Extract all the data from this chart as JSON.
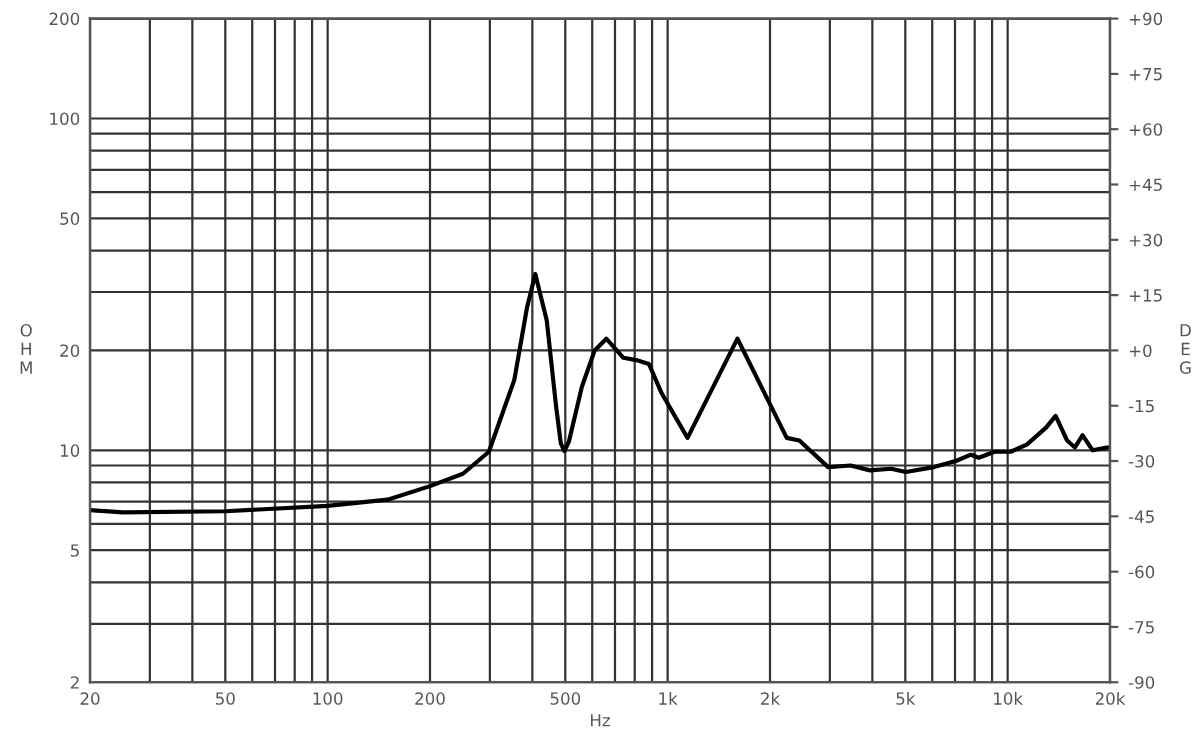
{
  "chart_data": {
    "type": "line",
    "xlabel": "Hz",
    "ylabel": "OHM",
    "y2label": "DEG",
    "log": "xy",
    "grid": true,
    "marker": "none",
    "line_style": "solid",
    "xlim": [
      20,
      20000
    ],
    "ylim": [
      2,
      200
    ],
    "y2lim": [
      -90,
      90
    ],
    "xticks": [
      20,
      {
        "value": 30,
        "label": null
      },
      {
        "value": 40,
        "label": null
      },
      50,
      {
        "value": 60,
        "label": null
      },
      {
        "value": 70,
        "label": null
      },
      {
        "value": 80,
        "label": null
      },
      {
        "value": 90,
        "label": null
      },
      100,
      200,
      {
        "value": 300,
        "label": null
      },
      {
        "value": 400,
        "label": null
      },
      500,
      {
        "value": 600,
        "label": null
      },
      {
        "value": 700,
        "label": null
      },
      {
        "value": 800,
        "label": null
      },
      {
        "value": 900,
        "label": null
      },
      {
        "value": 1000,
        "label": "1k"
      },
      {
        "value": 2000,
        "label": "2k"
      },
      {
        "value": 3000,
        "label": null
      },
      {
        "value": 4000,
        "label": null
      },
      {
        "value": 5000,
        "label": "5k"
      },
      {
        "value": 6000,
        "label": null
      },
      {
        "value": 7000,
        "label": null
      },
      {
        "value": 8000,
        "label": null
      },
      {
        "value": 9000,
        "label": null
      },
      {
        "value": 10000,
        "label": "10k"
      },
      {
        "value": 20000,
        "label": "20k"
      }
    ],
    "yticks": [
      2,
      {
        "value": 3,
        "label": null
      },
      {
        "value": 4,
        "label": null
      },
      5,
      {
        "value": 6,
        "label": null
      },
      {
        "value": 7,
        "label": null
      },
      {
        "value": 8,
        "label": null
      },
      {
        "value": 9,
        "label": null
      },
      10,
      20,
      {
        "value": 30,
        "label": null
      },
      {
        "value": 40,
        "label": null
      },
      50,
      {
        "value": 60,
        "label": null
      },
      {
        "value": 70,
        "label": null
      },
      {
        "value": 80,
        "label": null
      },
      {
        "value": 90,
        "label": null
      },
      100,
      200
    ],
    "y2ticks": [
      {
        "value": 90,
        "label": "+90"
      },
      {
        "value": 75,
        "label": "+75"
      },
      {
        "value": 60,
        "label": "+60"
      },
      {
        "value": 45,
        "label": "+45"
      },
      {
        "value": 30,
        "label": "+30"
      },
      {
        "value": 15,
        "label": "+15"
      },
      {
        "value": 0,
        "label": "+0"
      },
      {
        "value": -15,
        "label": "-15"
      },
      {
        "value": -30,
        "label": "-30"
      },
      {
        "value": -45,
        "label": "-45"
      },
      {
        "value": -60,
        "label": "-60"
      },
      {
        "value": -75,
        "label": "-75"
      },
      {
        "value": -90,
        "label": "-90"
      }
    ],
    "series": [
      {
        "color": "#000000",
        "x": [
          20,
          25,
          50,
          100,
          150,
          200,
          250,
          298,
          354,
          386,
          408,
          441,
          470,
          485,
          497,
          512,
          559,
          610,
          660,
          741,
          808,
          881,
          962,
          1144,
          1604,
          2240,
          2440,
          2966,
          3455,
          3935,
          4540,
          5020,
          6070,
          7070,
          7800,
          8220,
          9160,
          10200,
          11380,
          12970,
          13840,
          14960,
          15770,
          16600,
          17790,
          19550,
          20000
        ],
        "values": [
          6.6,
          6.5,
          6.55,
          6.8,
          7.1,
          7.8,
          8.5,
          9.9,
          16.3,
          27,
          34,
          24.6,
          13.5,
          10.5,
          9.95,
          10.6,
          15.5,
          20,
          21.7,
          19,
          18.7,
          18.2,
          14.8,
          10.9,
          21.7,
          10.9,
          10.7,
          8.9,
          9.0,
          8.7,
          8.8,
          8.6,
          8.9,
          9.3,
          9.7,
          9.5,
          9.9,
          9.9,
          10.4,
          11.7,
          12.7,
          10.7,
          10.2,
          11.1,
          10.0,
          10.2,
          10.2
        ]
      }
    ]
  }
}
